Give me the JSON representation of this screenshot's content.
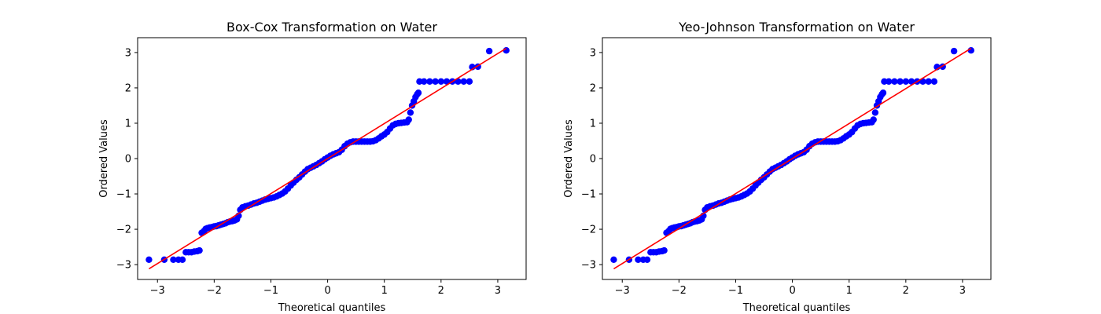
{
  "chart_data": [
    {
      "type": "scatter",
      "title": "Box-Cox Transformation on Water",
      "xlabel": "Theoretical quantiles",
      "ylabel": "Ordered Values",
      "xlim": [
        -3.35,
        3.5
      ],
      "ylim": [
        -3.42,
        3.42
      ],
      "xticks": [
        -3,
        -2,
        -1,
        0,
        1,
        2,
        3
      ],
      "yticks": [
        -3,
        -2,
        -1,
        0,
        1,
        2,
        3
      ],
      "grid": false,
      "point_color": "#0000ff",
      "line_color": "#ff0000",
      "fit_line": {
        "x": [
          -3.15,
          3.15
        ],
        "y": [
          -3.12,
          3.12
        ]
      },
      "points": [
        [
          -3.15,
          -2.86
        ],
        [
          -2.88,
          -2.86
        ],
        [
          -2.72,
          -2.86
        ],
        [
          -2.63,
          -2.86
        ],
        [
          -2.56,
          -2.86
        ],
        [
          -2.5,
          -2.65
        ],
        [
          -2.45,
          -2.65
        ],
        [
          -2.4,
          -2.65
        ],
        [
          -2.35,
          -2.63
        ],
        [
          -2.3,
          -2.62
        ],
        [
          -2.26,
          -2.6
        ],
        [
          -2.22,
          -2.1
        ],
        [
          -2.18,
          -2.05
        ],
        [
          -2.15,
          -1.99
        ],
        [
          -2.12,
          -1.97
        ],
        [
          -2.08,
          -1.95
        ],
        [
          -2.04,
          -1.94
        ],
        [
          -2.0,
          -1.92
        ],
        [
          -1.96,
          -1.91
        ],
        [
          -1.92,
          -1.89
        ],
        [
          -1.88,
          -1.87
        ],
        [
          -1.84,
          -1.85
        ],
        [
          -1.8,
          -1.83
        ],
        [
          -1.76,
          -1.8
        ],
        [
          -1.72,
          -1.78
        ],
        [
          -1.68,
          -1.77
        ],
        [
          -1.64,
          -1.75
        ],
        [
          -1.6,
          -1.72
        ],
        [
          -1.57,
          -1.62
        ],
        [
          -1.54,
          -1.45
        ],
        [
          -1.5,
          -1.38
        ],
        [
          -1.45,
          -1.35
        ],
        [
          -1.4,
          -1.33
        ],
        [
          -1.35,
          -1.3
        ],
        [
          -1.3,
          -1.27
        ],
        [
          -1.25,
          -1.25
        ],
        [
          -1.2,
          -1.22
        ],
        [
          -1.15,
          -1.19
        ],
        [
          -1.1,
          -1.16
        ],
        [
          -1.05,
          -1.14
        ],
        [
          -1.0,
          -1.12
        ],
        [
          -0.95,
          -1.1
        ],
        [
          -0.9,
          -1.07
        ],
        [
          -0.85,
          -1.03
        ],
        [
          -0.8,
          -0.99
        ],
        [
          -0.75,
          -0.93
        ],
        [
          -0.7,
          -0.85
        ],
        [
          -0.65,
          -0.76
        ],
        [
          -0.6,
          -0.68
        ],
        [
          -0.55,
          -0.6
        ],
        [
          -0.5,
          -0.53
        ],
        [
          -0.45,
          -0.45
        ],
        [
          -0.4,
          -0.37
        ],
        [
          -0.35,
          -0.3
        ],
        [
          -0.3,
          -0.26
        ],
        [
          -0.25,
          -0.22
        ],
        [
          -0.2,
          -0.18
        ],
        [
          -0.15,
          -0.13
        ],
        [
          -0.1,
          -0.08
        ],
        [
          -0.05,
          -0.02
        ],
        [
          0.0,
          0.03
        ],
        [
          0.05,
          0.08
        ],
        [
          0.1,
          0.12
        ],
        [
          0.15,
          0.15
        ],
        [
          0.2,
          0.18
        ],
        [
          0.25,
          0.25
        ],
        [
          0.3,
          0.35
        ],
        [
          0.35,
          0.42
        ],
        [
          0.4,
          0.46
        ],
        [
          0.45,
          0.48
        ],
        [
          0.5,
          0.48
        ],
        [
          0.55,
          0.48
        ],
        [
          0.6,
          0.48
        ],
        [
          0.65,
          0.48
        ],
        [
          0.7,
          0.48
        ],
        [
          0.75,
          0.48
        ],
        [
          0.8,
          0.49
        ],
        [
          0.85,
          0.52
        ],
        [
          0.9,
          0.57
        ],
        [
          0.95,
          0.63
        ],
        [
          1.0,
          0.68
        ],
        [
          1.05,
          0.75
        ],
        [
          1.1,
          0.85
        ],
        [
          1.15,
          0.94
        ],
        [
          1.2,
          0.98
        ],
        [
          1.25,
          1.0
        ],
        [
          1.3,
          1.01
        ],
        [
          1.35,
          1.02
        ],
        [
          1.4,
          1.03
        ],
        [
          1.43,
          1.1
        ],
        [
          1.46,
          1.3
        ],
        [
          1.49,
          1.5
        ],
        [
          1.52,
          1.62
        ],
        [
          1.55,
          1.74
        ],
        [
          1.58,
          1.82
        ],
        [
          1.6,
          1.86
        ],
        [
          1.62,
          2.18
        ],
        [
          1.7,
          2.18
        ],
        [
          1.8,
          2.18
        ],
        [
          1.9,
          2.18
        ],
        [
          2.0,
          2.18
        ],
        [
          2.1,
          2.18
        ],
        [
          2.2,
          2.18
        ],
        [
          2.3,
          2.18
        ],
        [
          2.4,
          2.18
        ],
        [
          2.5,
          2.18
        ],
        [
          2.55,
          2.59
        ],
        [
          2.65,
          2.6
        ],
        [
          2.85,
          3.04
        ],
        [
          3.15,
          3.06
        ]
      ]
    },
    {
      "type": "scatter",
      "title": "Yeo-Johnson Transformation on Water",
      "xlabel": "Theoretical quantiles",
      "ylabel": "Ordered Values",
      "xlim": [
        -3.35,
        3.5
      ],
      "ylim": [
        -3.42,
        3.42
      ],
      "xticks": [
        -3,
        -2,
        -1,
        0,
        1,
        2,
        3
      ],
      "yticks": [
        -3,
        -2,
        -1,
        0,
        1,
        2,
        3
      ],
      "grid": false,
      "point_color": "#0000ff",
      "line_color": "#ff0000",
      "fit_line": {
        "x": [
          -3.15,
          3.15
        ],
        "y": [
          -3.12,
          3.12
        ]
      },
      "points": [
        [
          -3.15,
          -2.86
        ],
        [
          -2.88,
          -2.86
        ],
        [
          -2.72,
          -2.86
        ],
        [
          -2.63,
          -2.86
        ],
        [
          -2.56,
          -2.86
        ],
        [
          -2.5,
          -2.65
        ],
        [
          -2.45,
          -2.65
        ],
        [
          -2.4,
          -2.65
        ],
        [
          -2.35,
          -2.63
        ],
        [
          -2.3,
          -2.62
        ],
        [
          -2.26,
          -2.6
        ],
        [
          -2.22,
          -2.1
        ],
        [
          -2.18,
          -2.05
        ],
        [
          -2.15,
          -1.99
        ],
        [
          -2.12,
          -1.97
        ],
        [
          -2.08,
          -1.95
        ],
        [
          -2.04,
          -1.94
        ],
        [
          -2.0,
          -1.92
        ],
        [
          -1.96,
          -1.91
        ],
        [
          -1.92,
          -1.89
        ],
        [
          -1.88,
          -1.87
        ],
        [
          -1.84,
          -1.85
        ],
        [
          -1.8,
          -1.83
        ],
        [
          -1.76,
          -1.8
        ],
        [
          -1.72,
          -1.78
        ],
        [
          -1.68,
          -1.77
        ],
        [
          -1.64,
          -1.75
        ],
        [
          -1.6,
          -1.72
        ],
        [
          -1.57,
          -1.62
        ],
        [
          -1.54,
          -1.45
        ],
        [
          -1.5,
          -1.38
        ],
        [
          -1.45,
          -1.35
        ],
        [
          -1.4,
          -1.33
        ],
        [
          -1.35,
          -1.3
        ],
        [
          -1.3,
          -1.27
        ],
        [
          -1.25,
          -1.25
        ],
        [
          -1.2,
          -1.22
        ],
        [
          -1.15,
          -1.19
        ],
        [
          -1.1,
          -1.16
        ],
        [
          -1.05,
          -1.14
        ],
        [
          -1.0,
          -1.12
        ],
        [
          -0.95,
          -1.1
        ],
        [
          -0.9,
          -1.07
        ],
        [
          -0.85,
          -1.03
        ],
        [
          -0.8,
          -0.99
        ],
        [
          -0.75,
          -0.93
        ],
        [
          -0.7,
          -0.85
        ],
        [
          -0.65,
          -0.76
        ],
        [
          -0.6,
          -0.68
        ],
        [
          -0.55,
          -0.6
        ],
        [
          -0.5,
          -0.53
        ],
        [
          -0.45,
          -0.45
        ],
        [
          -0.4,
          -0.37
        ],
        [
          -0.35,
          -0.3
        ],
        [
          -0.3,
          -0.26
        ],
        [
          -0.25,
          -0.22
        ],
        [
          -0.2,
          -0.18
        ],
        [
          -0.15,
          -0.13
        ],
        [
          -0.1,
          -0.08
        ],
        [
          -0.05,
          -0.02
        ],
        [
          0.0,
          0.03
        ],
        [
          0.05,
          0.08
        ],
        [
          0.1,
          0.12
        ],
        [
          0.15,
          0.15
        ],
        [
          0.2,
          0.18
        ],
        [
          0.25,
          0.25
        ],
        [
          0.3,
          0.35
        ],
        [
          0.35,
          0.42
        ],
        [
          0.4,
          0.46
        ],
        [
          0.45,
          0.48
        ],
        [
          0.5,
          0.48
        ],
        [
          0.55,
          0.48
        ],
        [
          0.6,
          0.48
        ],
        [
          0.65,
          0.48
        ],
        [
          0.7,
          0.48
        ],
        [
          0.75,
          0.48
        ],
        [
          0.8,
          0.49
        ],
        [
          0.85,
          0.52
        ],
        [
          0.9,
          0.57
        ],
        [
          0.95,
          0.63
        ],
        [
          1.0,
          0.68
        ],
        [
          1.05,
          0.75
        ],
        [
          1.1,
          0.85
        ],
        [
          1.15,
          0.94
        ],
        [
          1.2,
          0.98
        ],
        [
          1.25,
          1.0
        ],
        [
          1.3,
          1.01
        ],
        [
          1.35,
          1.02
        ],
        [
          1.4,
          1.03
        ],
        [
          1.43,
          1.1
        ],
        [
          1.46,
          1.3
        ],
        [
          1.49,
          1.5
        ],
        [
          1.52,
          1.62
        ],
        [
          1.55,
          1.74
        ],
        [
          1.58,
          1.82
        ],
        [
          1.6,
          1.86
        ],
        [
          1.62,
          2.18
        ],
        [
          1.7,
          2.18
        ],
        [
          1.8,
          2.18
        ],
        [
          1.9,
          2.18
        ],
        [
          2.0,
          2.18
        ],
        [
          2.1,
          2.18
        ],
        [
          2.2,
          2.18
        ],
        [
          2.3,
          2.18
        ],
        [
          2.4,
          2.18
        ],
        [
          2.5,
          2.18
        ],
        [
          2.55,
          2.59
        ],
        [
          2.65,
          2.6
        ],
        [
          2.85,
          3.04
        ],
        [
          3.15,
          3.06
        ]
      ]
    }
  ]
}
